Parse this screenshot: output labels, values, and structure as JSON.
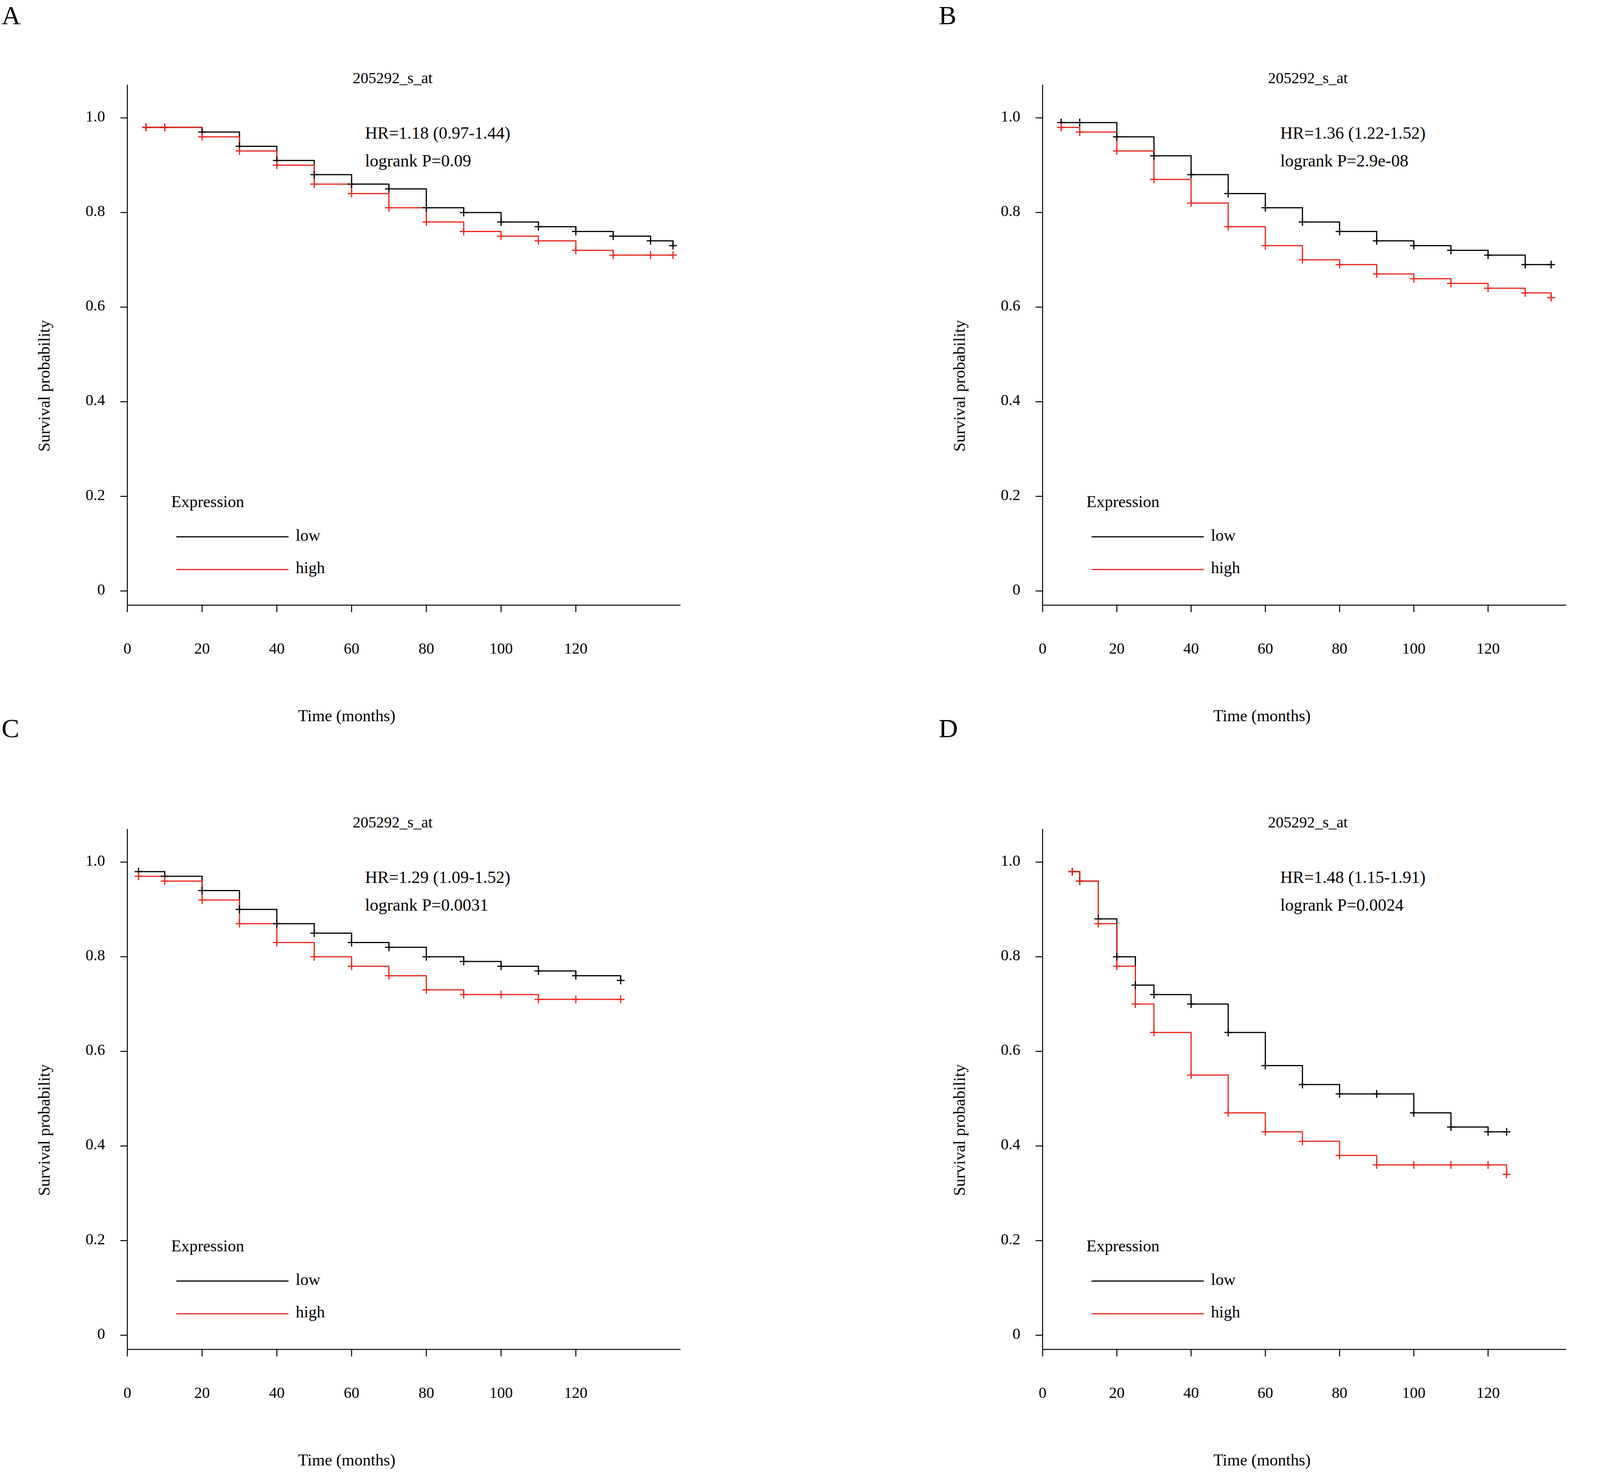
{
  "chart_data": [
    {
      "type": "line",
      "panel_label": "A",
      "title": "205292_s_at",
      "x_label": "Time (months)",
      "y_label": "Survival probability",
      "annotations": [
        "HR=1.18 (0.97-1.44)",
        "logrank P=0.09"
      ],
      "legend_title": "Expression",
      "legend": "lower left",
      "grid": false,
      "x": [
        5,
        10,
        20,
        30,
        40,
        50,
        60,
        70,
        80,
        90,
        100,
        110,
        120,
        130,
        140,
        146
      ],
      "series": [
        {
          "name": "low",
          "color": "#000000",
          "marker": "plus",
          "line_style": "step",
          "values": [
            0.98,
            0.98,
            0.97,
            0.94,
            0.91,
            0.88,
            0.86,
            0.85,
            0.81,
            0.8,
            0.78,
            0.77,
            0.76,
            0.75,
            0.74,
            0.73
          ]
        },
        {
          "name": "high",
          "color": "#e8251c",
          "marker": "plus",
          "line_style": "step",
          "values": [
            0.98,
            0.98,
            0.96,
            0.93,
            0.9,
            0.86,
            0.84,
            0.81,
            0.78,
            0.76,
            0.75,
            0.74,
            0.72,
            0.71,
            0.71,
            0.71
          ]
        }
      ],
      "xlim": [
        0,
        148
      ],
      "xticks": [
        0,
        20,
        40,
        60,
        80,
        100,
        120
      ],
      "ylim": [
        -0.03,
        1.07
      ],
      "yticks": [
        0,
        0.2,
        0.4,
        0.6,
        0.8,
        {
          "value": 1,
          "label": "1.0"
        }
      ]
    },
    {
      "type": "line",
      "panel_label": "B",
      "title": "205292_s_at",
      "x_label": "Time (months)",
      "y_label": "Survival probability",
      "annotations": [
        "HR=1.36 (1.22-1.52)",
        "logrank P=2.9e-08"
      ],
      "legend_title": "Expression",
      "legend": "lower left",
      "grid": false,
      "x": [
        5,
        10,
        20,
        30,
        40,
        50,
        60,
        70,
        80,
        90,
        100,
        110,
        120,
        130,
        137
      ],
      "series": [
        {
          "name": "low",
          "color": "#000000",
          "marker": "plus",
          "line_style": "step",
          "values": [
            0.99,
            0.99,
            0.96,
            0.92,
            0.88,
            0.84,
            0.81,
            0.78,
            0.76,
            0.74,
            0.73,
            0.72,
            0.71,
            0.69,
            0.69
          ]
        },
        {
          "name": "high",
          "color": "#e8251c",
          "marker": "plus",
          "line_style": "step",
          "values": [
            0.98,
            0.97,
            0.93,
            0.87,
            0.82,
            0.77,
            0.73,
            0.7,
            0.69,
            0.67,
            0.66,
            0.65,
            0.64,
            0.63,
            0.62
          ]
        }
      ],
      "xlim": [
        0,
        141
      ],
      "xticks": [
        0,
        20,
        40,
        60,
        80,
        100,
        120
      ],
      "ylim": [
        -0.03,
        1.07
      ],
      "yticks": [
        0,
        0.2,
        0.4,
        0.6,
        0.8,
        {
          "value": 1,
          "label": "1.0"
        }
      ]
    },
    {
      "type": "line",
      "panel_label": "C",
      "title": "205292_s_at",
      "x_label": "Time (months)",
      "y_label": "Survival probability",
      "annotations": [
        "HR=1.29 (1.09-1.52)",
        "logrank P=0.0031"
      ],
      "legend_title": "Expression",
      "legend": "lower left",
      "grid": false,
      "x": [
        3,
        10,
        20,
        30,
        40,
        50,
        60,
        70,
        80,
        90,
        100,
        110,
        120,
        132
      ],
      "series": [
        {
          "name": "low",
          "color": "#000000",
          "marker": "plus",
          "line_style": "step",
          "values": [
            0.98,
            0.97,
            0.94,
            0.9,
            0.87,
            0.85,
            0.83,
            0.82,
            0.8,
            0.79,
            0.78,
            0.77,
            0.76,
            0.75
          ]
        },
        {
          "name": "high",
          "color": "#e8251c",
          "marker": "plus",
          "line_style": "step",
          "values": [
            0.97,
            0.96,
            0.92,
            0.87,
            0.83,
            0.8,
            0.78,
            0.76,
            0.73,
            0.72,
            0.72,
            0.71,
            0.71,
            0.71
          ]
        }
      ],
      "xlim": [
        0,
        148
      ],
      "xticks": [
        0,
        20,
        40,
        60,
        80,
        100,
        120
      ],
      "ylim": [
        -0.03,
        1.07
      ],
      "yticks": [
        0,
        0.2,
        0.4,
        0.6,
        0.8,
        {
          "value": 1,
          "label": "1.0"
        }
      ]
    },
    {
      "type": "line",
      "panel_label": "D",
      "title": "205292_s_at",
      "x_label": "Time (months)",
      "y_label": "Survival probability",
      "annotations": [
        "HR=1.48 (1.15-1.91)",
        "logrank P=0.0024"
      ],
      "legend_title": "Expression",
      "legend": "lower left",
      "grid": false,
      "x": [
        8,
        10,
        15,
        20,
        25,
        30,
        40,
        50,
        60,
        70,
        80,
        90,
        100,
        110,
        120,
        125
      ],
      "series": [
        {
          "name": "low",
          "color": "#000000",
          "marker": "plus",
          "line_style": "step",
          "values": [
            0.98,
            0.96,
            0.88,
            0.8,
            0.74,
            0.72,
            0.7,
            0.64,
            0.57,
            0.53,
            0.51,
            0.51,
            0.47,
            0.44,
            0.43,
            0.43
          ]
        },
        {
          "name": "high",
          "color": "#e8251c",
          "marker": "plus",
          "line_style": "step",
          "values": [
            0.98,
            0.96,
            0.87,
            0.78,
            0.7,
            0.64,
            0.55,
            0.47,
            0.43,
            0.41,
            0.38,
            0.36,
            0.36,
            0.36,
            0.36,
            0.34
          ]
        }
      ],
      "xlim": [
        0,
        141
      ],
      "xticks": [
        0,
        20,
        40,
        60,
        80,
        100,
        120
      ],
      "ylim": [
        -0.03,
        1.07
      ],
      "yticks": [
        0,
        0.2,
        0.4,
        0.6,
        0.8,
        {
          "value": 1,
          "label": "1.0"
        }
      ]
    }
  ]
}
